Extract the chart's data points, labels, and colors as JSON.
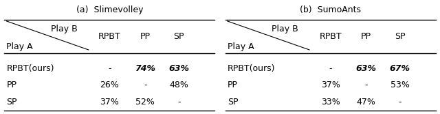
{
  "title_a": "(a)  Slimevolley",
  "title_b": "(b)  SumoAnts",
  "col_headers": [
    "RPBT",
    "PP",
    "SP"
  ],
  "row_headers": [
    "RPBT(ours)",
    "PP",
    "SP"
  ],
  "data_a": [
    [
      "-",
      "74%",
      "63%"
    ],
    [
      "26%",
      "-",
      "48%"
    ],
    [
      "37%",
      "52%",
      "-"
    ]
  ],
  "bold_a": [
    [
      false,
      true,
      true
    ],
    [
      false,
      false,
      false
    ],
    [
      false,
      false,
      false
    ]
  ],
  "data_b": [
    [
      "-",
      "63%",
      "67%"
    ],
    [
      "37%",
      "-",
      "53%"
    ],
    [
      "33%",
      "47%",
      "-"
    ]
  ],
  "bold_b": [
    [
      false,
      true,
      true
    ],
    [
      false,
      false,
      false
    ],
    [
      false,
      false,
      false
    ]
  ],
  "play_b_label": "Play B",
  "play_a_label": "Play A",
  "bg_color": "#ffffff",
  "text_color": "#000000",
  "fontsize": 9,
  "header_fontsize": 9,
  "title_fontsize": 9
}
